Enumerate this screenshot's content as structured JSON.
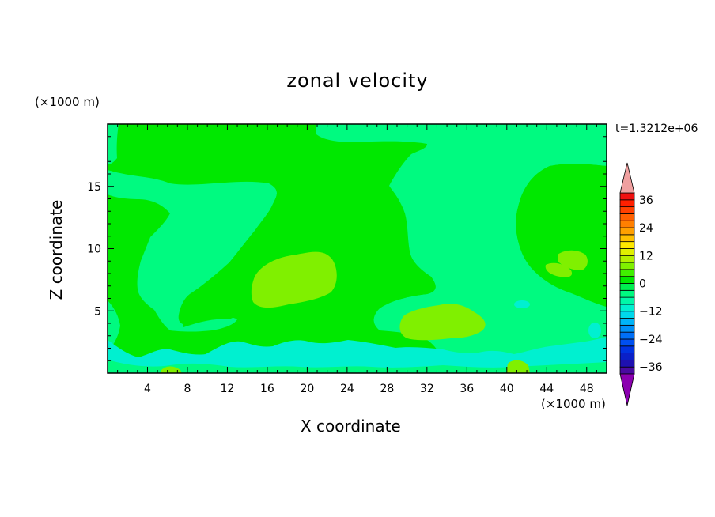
{
  "chart_data": {
    "type": "heatmap",
    "title": "zonal velocity",
    "xlabel": "X coordinate",
    "ylabel": "Z coordinate",
    "x_unit": "(×1000 m)",
    "y_unit": "(×1000 m)",
    "time_label": "t=1.3212e+06",
    "xlim": [
      0,
      50
    ],
    "ylim": [
      0,
      20
    ],
    "x_ticks": [
      4,
      8,
      12,
      16,
      20,
      24,
      28,
      32,
      36,
      40,
      44,
      48
    ],
    "y_ticks": [
      5,
      10,
      15
    ],
    "colorbar": {
      "levels": [
        -42,
        -39,
        -36,
        -33,
        -30,
        -27,
        -24,
        -21,
        -18,
        -15,
        -12,
        -9,
        -6,
        -3,
        0,
        3,
        6,
        9,
        12,
        15,
        18,
        21,
        24,
        27,
        30,
        33,
        36,
        39,
        42
      ],
      "tick_labels": [
        "36",
        "24",
        "12",
        "0",
        "−12",
        "−24",
        "−36"
      ],
      "tick_values": [
        36,
        24,
        12,
        0,
        -12,
        -24,
        -36
      ],
      "colors": [
        "#8b00b0",
        "#4a0aa0",
        "#1e10b0",
        "#0a20c8",
        "#0032e0",
        "#0050f0",
        "#0070f8",
        "#0090f8",
        "#00b4f8",
        "#00d8ec",
        "#00f0d0",
        "#00f8a8",
        "#00fa80",
        "#00f050",
        "#00e800",
        "#40f000",
        "#80f000",
        "#b4f000",
        "#e0f000",
        "#ffe800",
        "#ffc000",
        "#ffa000",
        "#ff8000",
        "#ff6000",
        "#ff4000",
        "#ff2000",
        "#f01010",
        "#f0a0a0"
      ],
      "under_color": "#8b00b0",
      "over_color": "#f0a0a0"
    },
    "field_regions": [
      {
        "value": 1,
        "color": "#00e800",
        "shape": "background"
      },
      {
        "value": -2,
        "color": "#00fa80",
        "shape": "left-middle band"
      },
      {
        "value": -2,
        "color": "#00fa80",
        "shape": "right-middle band"
      },
      {
        "value": 4,
        "color": "#80f000",
        "shape": "blob x~15-24 z~5-10"
      },
      {
        "value": 4,
        "color": "#80f000",
        "shape": "blob x~30-38 z~3-6"
      },
      {
        "value": 4,
        "color": "#80f000",
        "shape": "blob x~44-48 z~8-10"
      },
      {
        "value": -6,
        "color": "#00f0d0",
        "shape": "bottom band z~0-2"
      }
    ]
  }
}
